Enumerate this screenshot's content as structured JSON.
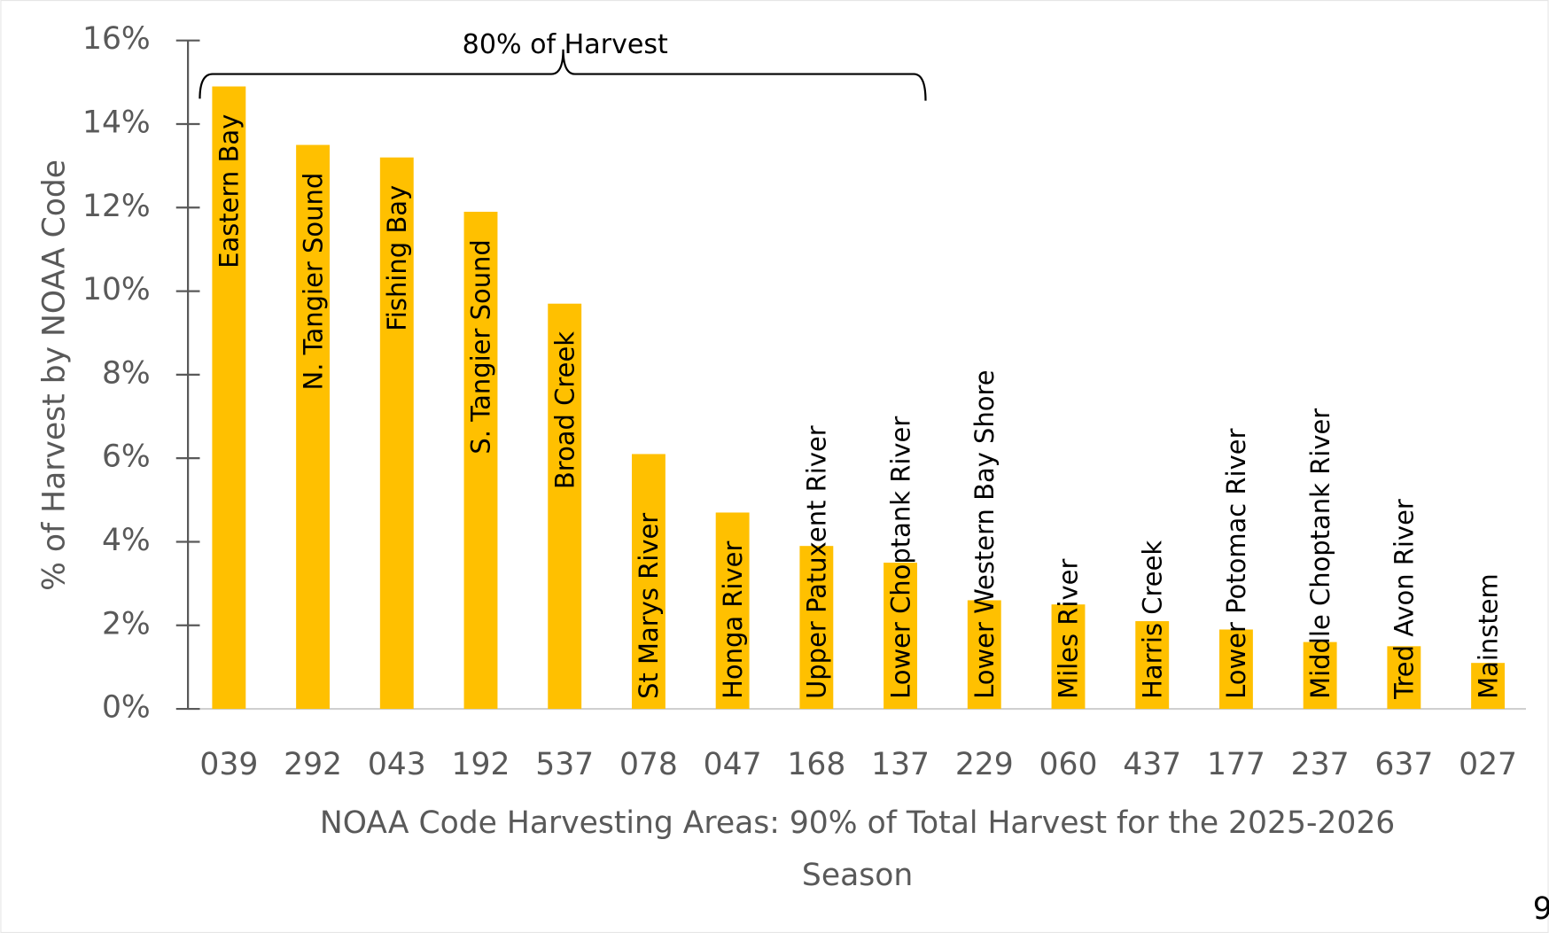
{
  "chart_data": {
    "type": "bar",
    "annotation": "80% of Harvest",
    "y_label": "% of Harvest by NOAA Code",
    "x_label": [
      "NOAA Code Harvesting Areas: 90% of Total Harvest for the 2025-2026",
      "Season"
    ],
    "categories": [
      "039",
      "292",
      "043",
      "192",
      "537",
      "078",
      "047",
      "168",
      "137",
      "229",
      "060",
      "437",
      "177",
      "237",
      "637",
      "027"
    ],
    "bar_labels": [
      "Eastern Bay",
      "N. Tangier Sound",
      "Fishing Bay",
      "S. Tangier Sound",
      "Broad Creek",
      "St Marys River",
      "Honga River",
      "Upper Patuxent River",
      "Lower Choptank  River",
      "Lower Western Bay Shore",
      "Miles River",
      "Harris Creek",
      "Lower Potomac  River",
      "Middle Choptank  River",
      "Tred Avon River",
      "Mainstem"
    ],
    "values": [
      14.9,
      13.5,
      13.2,
      11.9,
      9.7,
      6.1,
      4.7,
      3.9,
      3.5,
      2.6,
      2.5,
      2.1,
      1.9,
      1.6,
      1.5,
      1.1
    ],
    "color": "#ffc000",
    "ylim": [
      0,
      16
    ],
    "yticks": [
      {
        "value": 0,
        "label": "0%"
      },
      {
        "value": 2,
        "label": "2%"
      },
      {
        "value": 4,
        "label": "4%"
      },
      {
        "value": 6,
        "label": "6%"
      },
      {
        "value": 8,
        "label": "8%"
      },
      {
        "value": 10,
        "label": "10%"
      },
      {
        "value": 12,
        "label": "12%"
      },
      {
        "value": 14,
        "label": "14%"
      },
      {
        "value": 16,
        "label": "16%"
      }
    ],
    "page_number": "9"
  }
}
